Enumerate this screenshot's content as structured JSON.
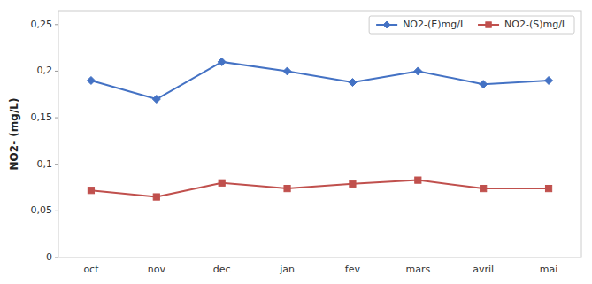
{
  "chart_data": {
    "type": "line",
    "categories": [
      "oct",
      "nov",
      "dec",
      "jan",
      "fev",
      "mars",
      "avril",
      "mai"
    ],
    "series": [
      {
        "name": "NO2-(E)mg/L",
        "color": "#4472C4",
        "marker": "diamond",
        "line_style": "solid",
        "values": [
          0.19,
          0.17,
          0.21,
          0.2,
          0.188,
          0.2,
          0.186,
          0.19
        ]
      },
      {
        "name": "NO2-(S)mg/L",
        "color": "#C0504D",
        "marker": "square",
        "line_style": "solid",
        "values": [
          0.072,
          0.065,
          0.08,
          0.074,
          0.079,
          0.083,
          0.074,
          0.074
        ]
      }
    ],
    "ylabel": "NO2- (mg/L)",
    "ylim": [
      0,
      0.265
    ],
    "yticks": [
      0,
      {
        "value": 0.05,
        "label": "0,05"
      },
      {
        "value": 0.1,
        "label": "0,1"
      },
      {
        "value": 0.15,
        "label": "0,15"
      },
      {
        "value": 0.2,
        "label": "0,2"
      },
      {
        "value": 0.25,
        "label": "0,25"
      }
    ],
    "grid": false,
    "legend": "upper right"
  }
}
